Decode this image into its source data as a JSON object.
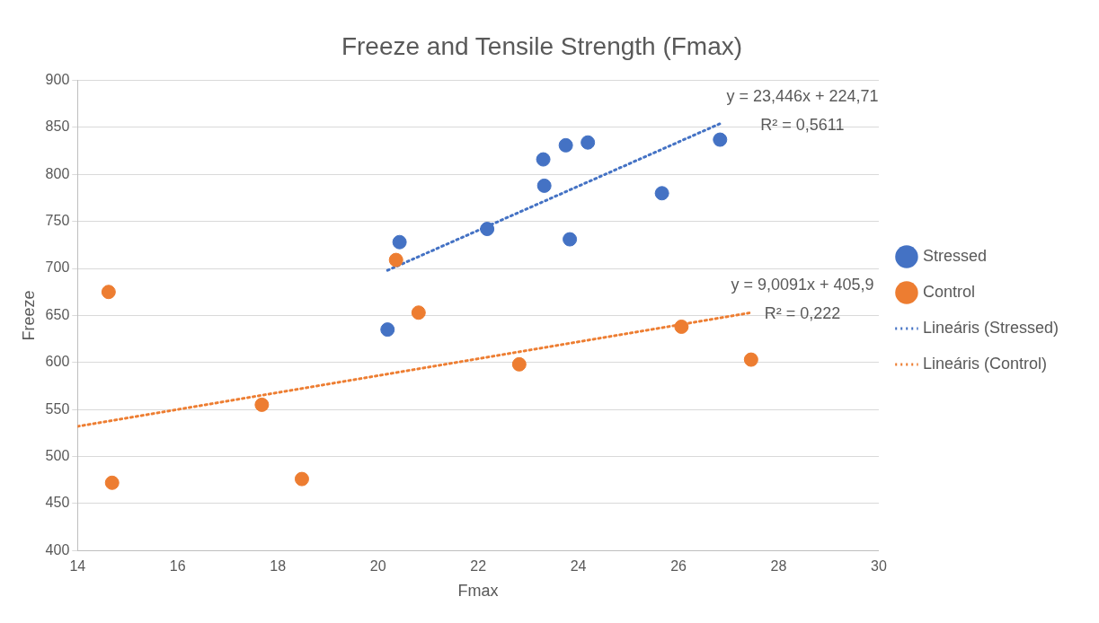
{
  "chart_data": {
    "type": "scatter",
    "title": "Freeze and Tensile Strength (Fmax)",
    "xlabel": "Fmax",
    "ylabel": "Freeze",
    "xlim": [
      14,
      30
    ],
    "xticks": [
      14,
      16,
      18,
      20,
      22,
      24,
      26,
      28,
      30
    ],
    "ylim": [
      400,
      900
    ],
    "yticks": [
      400,
      450,
      500,
      550,
      600,
      650,
      700,
      750,
      800,
      850,
      900
    ],
    "grid": "y",
    "legend": "right",
    "marker": "circle",
    "series": [
      {
        "name": "Stressed",
        "color": "#4472c4",
        "x": [
          20.19,
          20.43,
          22.18,
          23.3,
          23.32,
          23.75,
          23.83,
          24.19,
          25.67,
          26.83
        ],
        "values": [
          635,
          728,
          742,
          816,
          788,
          831,
          731,
          834,
          780,
          837
        ]
      },
      {
        "name": "Control",
        "color": "#ed7d31",
        "x": [
          14.62,
          14.69,
          17.68,
          18.48,
          20.36,
          20.81,
          22.82,
          26.06,
          27.45
        ],
        "values": [
          675,
          472,
          555,
          476,
          709,
          653,
          598,
          638,
          603
        ]
      },
      {
        "name": "Lineáris (Stressed)",
        "type": "line",
        "line_style": "dotted",
        "marker": "none",
        "color": "#4472c4",
        "x": [
          20.19,
          26.83
        ],
        "values": [
          698,
          854
        ]
      },
      {
        "name": "Lineáris (Control)",
        "type": "line",
        "line_style": "dotted",
        "marker": "none",
        "color": "#ed7d31",
        "x": [
          14,
          27.45
        ],
        "values": [
          532,
          653
        ]
      }
    ],
    "annotations": [
      "y = 23,446x + 224,71",
      "R² = 0,5611",
      "y = 9,0091x + 405,9",
      "R² = 0,222"
    ]
  }
}
